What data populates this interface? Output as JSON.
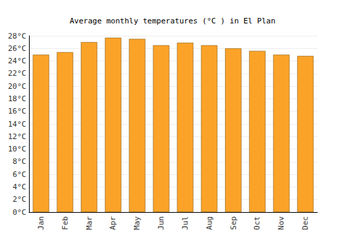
{
  "chart_data": {
    "type": "bar",
    "title": "Average monthly temperatures (°C ) in El Plan",
    "categories": [
      "Jan",
      "Feb",
      "Mar",
      "Apr",
      "May",
      "Jun",
      "Jul",
      "Aug",
      "Sep",
      "Oct",
      "Nov",
      "Dec"
    ],
    "values": [
      25.0,
      25.4,
      27.0,
      27.7,
      27.5,
      26.5,
      26.9,
      26.5,
      26.0,
      25.6,
      25.0,
      24.8
    ],
    "color": "#fba328",
    "ylim": [
      0,
      28
    ],
    "yticks": [
      {
        "value": 0,
        "label": "0°C"
      },
      {
        "value": 2,
        "label": "2°C"
      },
      {
        "value": 4,
        "label": "4°C"
      },
      {
        "value": 6,
        "label": "6°C"
      },
      {
        "value": 8,
        "label": "8°C"
      },
      {
        "value": 10,
        "label": "10°C"
      },
      {
        "value": 12,
        "label": "12°C"
      },
      {
        "value": 14,
        "label": "14°C"
      },
      {
        "value": 16,
        "label": "16°C"
      },
      {
        "value": 18,
        "label": "18°C"
      },
      {
        "value": 20,
        "label": "20°C"
      },
      {
        "value": 22,
        "label": "22°C"
      },
      {
        "value": 24,
        "label": "24°C"
      },
      {
        "value": 26,
        "label": "26°C"
      },
      {
        "value": 28,
        "label": "28°C"
      }
    ],
    "grid": true
  }
}
